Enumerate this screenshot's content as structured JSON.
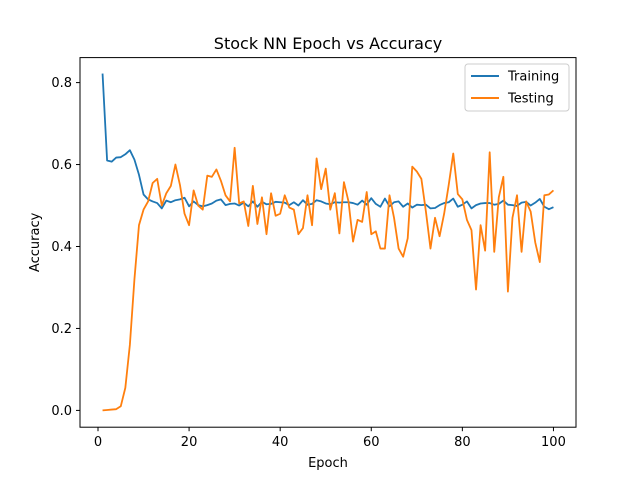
{
  "chart_data": {
    "type": "line",
    "title": "Stock NN Epoch vs Accuracy",
    "xlabel": "Epoch",
    "ylabel": "Accuracy",
    "xlim": [
      -3.95,
      104.95
    ],
    "ylim": [
      -0.041,
      0.861
    ],
    "xticks": [
      0,
      20,
      40,
      60,
      80,
      100
    ],
    "yticks": [
      0.0,
      0.2,
      0.4,
      0.6,
      0.8
    ],
    "xtick_labels": [
      "0",
      "20",
      "40",
      "60",
      "80",
      "100"
    ],
    "ytick_labels": [
      "0.0",
      "0.2",
      "0.4",
      "0.6",
      "0.8"
    ],
    "legend_position": "top-right",
    "grid": false,
    "x": [
      1,
      2,
      3,
      4,
      5,
      6,
      7,
      8,
      9,
      10,
      11,
      12,
      13,
      14,
      15,
      16,
      17,
      18,
      19,
      20,
      21,
      22,
      23,
      24,
      25,
      26,
      27,
      28,
      29,
      30,
      31,
      32,
      33,
      34,
      35,
      36,
      37,
      38,
      39,
      40,
      41,
      42,
      43,
      44,
      45,
      46,
      47,
      48,
      49,
      50,
      51,
      52,
      53,
      54,
      55,
      56,
      57,
      58,
      59,
      60,
      61,
      62,
      63,
      64,
      65,
      66,
      67,
      68,
      69,
      70,
      71,
      72,
      73,
      74,
      75,
      76,
      77,
      78,
      79,
      80,
      81,
      82,
      83,
      84,
      85,
      86,
      87,
      88,
      89,
      90,
      91,
      92,
      93,
      94,
      95,
      96,
      97,
      98,
      99,
      100
    ],
    "series": [
      {
        "name": "Training",
        "color": "#1f77b4",
        "values": [
          0.822,
          0.61,
          0.607,
          0.617,
          0.618,
          0.625,
          0.635,
          0.612,
          0.575,
          0.527,
          0.515,
          0.51,
          0.506,
          0.493,
          0.512,
          0.508,
          0.513,
          0.515,
          0.519,
          0.498,
          0.51,
          0.501,
          0.498,
          0.501,
          0.505,
          0.512,
          0.515,
          0.501,
          0.504,
          0.505,
          0.5,
          0.507,
          0.498,
          0.51,
          0.497,
          0.509,
          0.503,
          0.504,
          0.509,
          0.508,
          0.507,
          0.501,
          0.508,
          0.5,
          0.513,
          0.502,
          0.504,
          0.513,
          0.51,
          0.505,
          0.503,
          0.508,
          0.507,
          0.508,
          0.508,
          0.506,
          0.502,
          0.512,
          0.502,
          0.518,
          0.504,
          0.497,
          0.517,
          0.498,
          0.508,
          0.51,
          0.497,
          0.505,
          0.495,
          0.502,
          0.501,
          0.502,
          0.493,
          0.494,
          0.501,
          0.506,
          0.508,
          0.517,
          0.497,
          0.502,
          0.51,
          0.493,
          0.501,
          0.505,
          0.506,
          0.506,
          0.502,
          0.504,
          0.512,
          0.502,
          0.501,
          0.499,
          0.507,
          0.509,
          0.5,
          0.507,
          0.516,
          0.497,
          0.491,
          0.496
        ]
      },
      {
        "name": "Testing",
        "color": "#ff7f0e",
        "values": [
          0.0,
          0.001,
          0.002,
          0.003,
          0.01,
          0.055,
          0.16,
          0.32,
          0.452,
          0.49,
          0.51,
          0.555,
          0.565,
          0.5,
          0.53,
          0.548,
          0.6,
          0.55,
          0.48,
          0.452,
          0.537,
          0.5,
          0.49,
          0.573,
          0.57,
          0.588,
          0.56,
          0.525,
          0.51,
          0.641,
          0.505,
          0.51,
          0.45,
          0.548,
          0.455,
          0.52,
          0.43,
          0.53,
          0.475,
          0.48,
          0.525,
          0.495,
          0.49,
          0.43,
          0.445,
          0.525,
          0.452,
          0.615,
          0.54,
          0.59,
          0.49,
          0.53,
          0.432,
          0.557,
          0.51,
          0.412,
          0.465,
          0.46,
          0.533,
          0.43,
          0.437,
          0.395,
          0.395,
          0.525,
          0.47,
          0.395,
          0.375,
          0.42,
          0.595,
          0.583,
          0.565,
          0.485,
          0.395,
          0.47,
          0.425,
          0.48,
          0.55,
          0.627,
          0.528,
          0.515,
          0.465,
          0.44,
          0.295,
          0.452,
          0.39,
          0.63,
          0.387,
          0.52,
          0.57,
          0.29,
          0.47,
          0.525,
          0.387,
          0.51,
          0.485,
          0.41,
          0.362,
          0.525,
          0.527,
          0.537
        ]
      }
    ]
  }
}
